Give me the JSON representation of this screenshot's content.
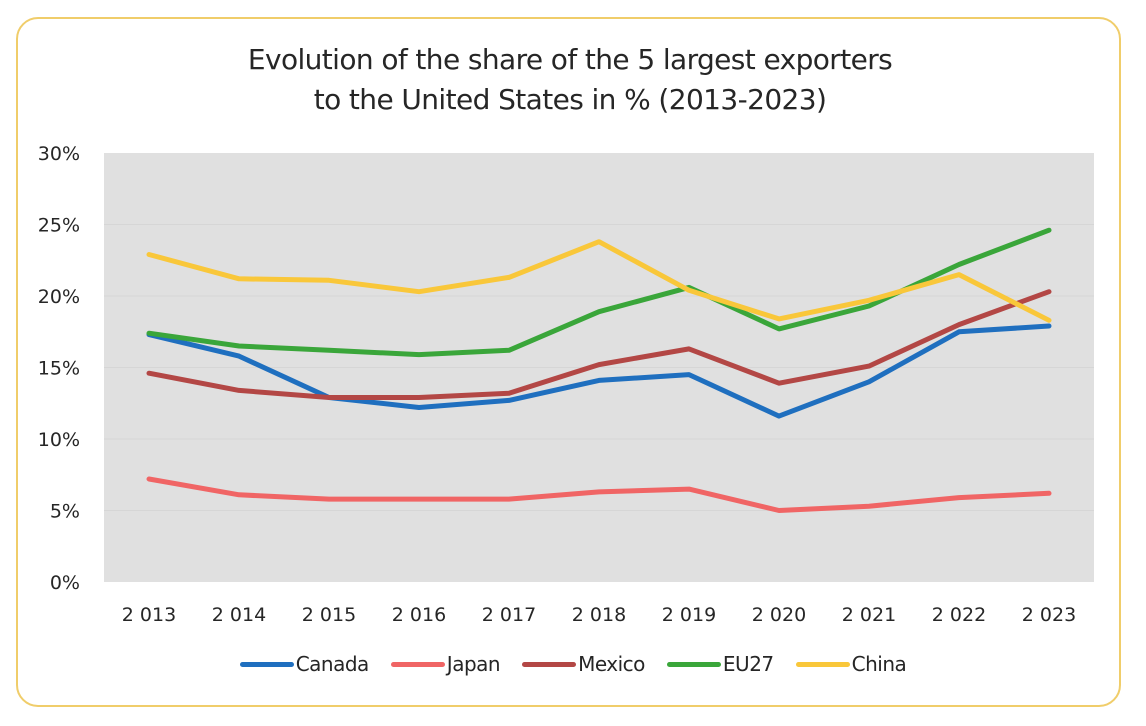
{
  "chart_data": {
    "type": "line",
    "title": "Evolution of the share of the 5 largest exporters to the United States in % (2013-2023)",
    "title_lines": [
      "Evolution of the share of the 5 largest exporters",
      "to the United States in % (2013-2023)"
    ],
    "xlabel": "",
    "ylabel": "",
    "x": [
      "2 013",
      "2 014",
      "2 015",
      "2 016",
      "2 017",
      "2 018",
      "2 019",
      "2 020",
      "2 021",
      "2 022",
      "2 023"
    ],
    "ylim": [
      0,
      30
    ],
    "yticks": [
      0,
      5,
      10,
      15,
      20,
      25,
      30
    ],
    "ytick_labels": [
      "0%",
      "5%",
      "10%",
      "15%",
      "20%",
      "25%",
      "30%"
    ],
    "grid": true,
    "legend_position": "bottom",
    "series": [
      {
        "name": "Canada",
        "color": "#1f6fbf",
        "values": [
          17.3,
          15.8,
          12.9,
          12.2,
          12.7,
          14.1,
          14.5,
          11.6,
          14.0,
          17.5,
          17.9
        ]
      },
      {
        "name": "Japan",
        "color": "#f06565",
        "values": [
          7.2,
          6.1,
          5.8,
          5.8,
          5.8,
          6.3,
          6.5,
          5.0,
          5.3,
          5.9,
          6.2
        ]
      },
      {
        "name": "Mexico",
        "color": "#b34745",
        "values": [
          14.6,
          13.4,
          12.9,
          12.9,
          13.2,
          15.2,
          16.3,
          13.9,
          15.1,
          18.0,
          20.3
        ]
      },
      {
        "name": "EU27",
        "color": "#3aa63a",
        "values": [
          17.4,
          16.5,
          16.2,
          15.9,
          16.2,
          18.9,
          20.6,
          17.7,
          19.3,
          22.2,
          24.6
        ]
      },
      {
        "name": "China",
        "color": "#f9c73a",
        "values": [
          22.9,
          21.2,
          21.1,
          20.3,
          21.3,
          23.8,
          20.4,
          18.4,
          19.7,
          21.5,
          18.3
        ]
      }
    ]
  },
  "colors": {
    "frame_border": "#f0cd6a",
    "plot_background": "#e0e0e0",
    "gridline": "#d6d6d6",
    "text": "#262626"
  }
}
